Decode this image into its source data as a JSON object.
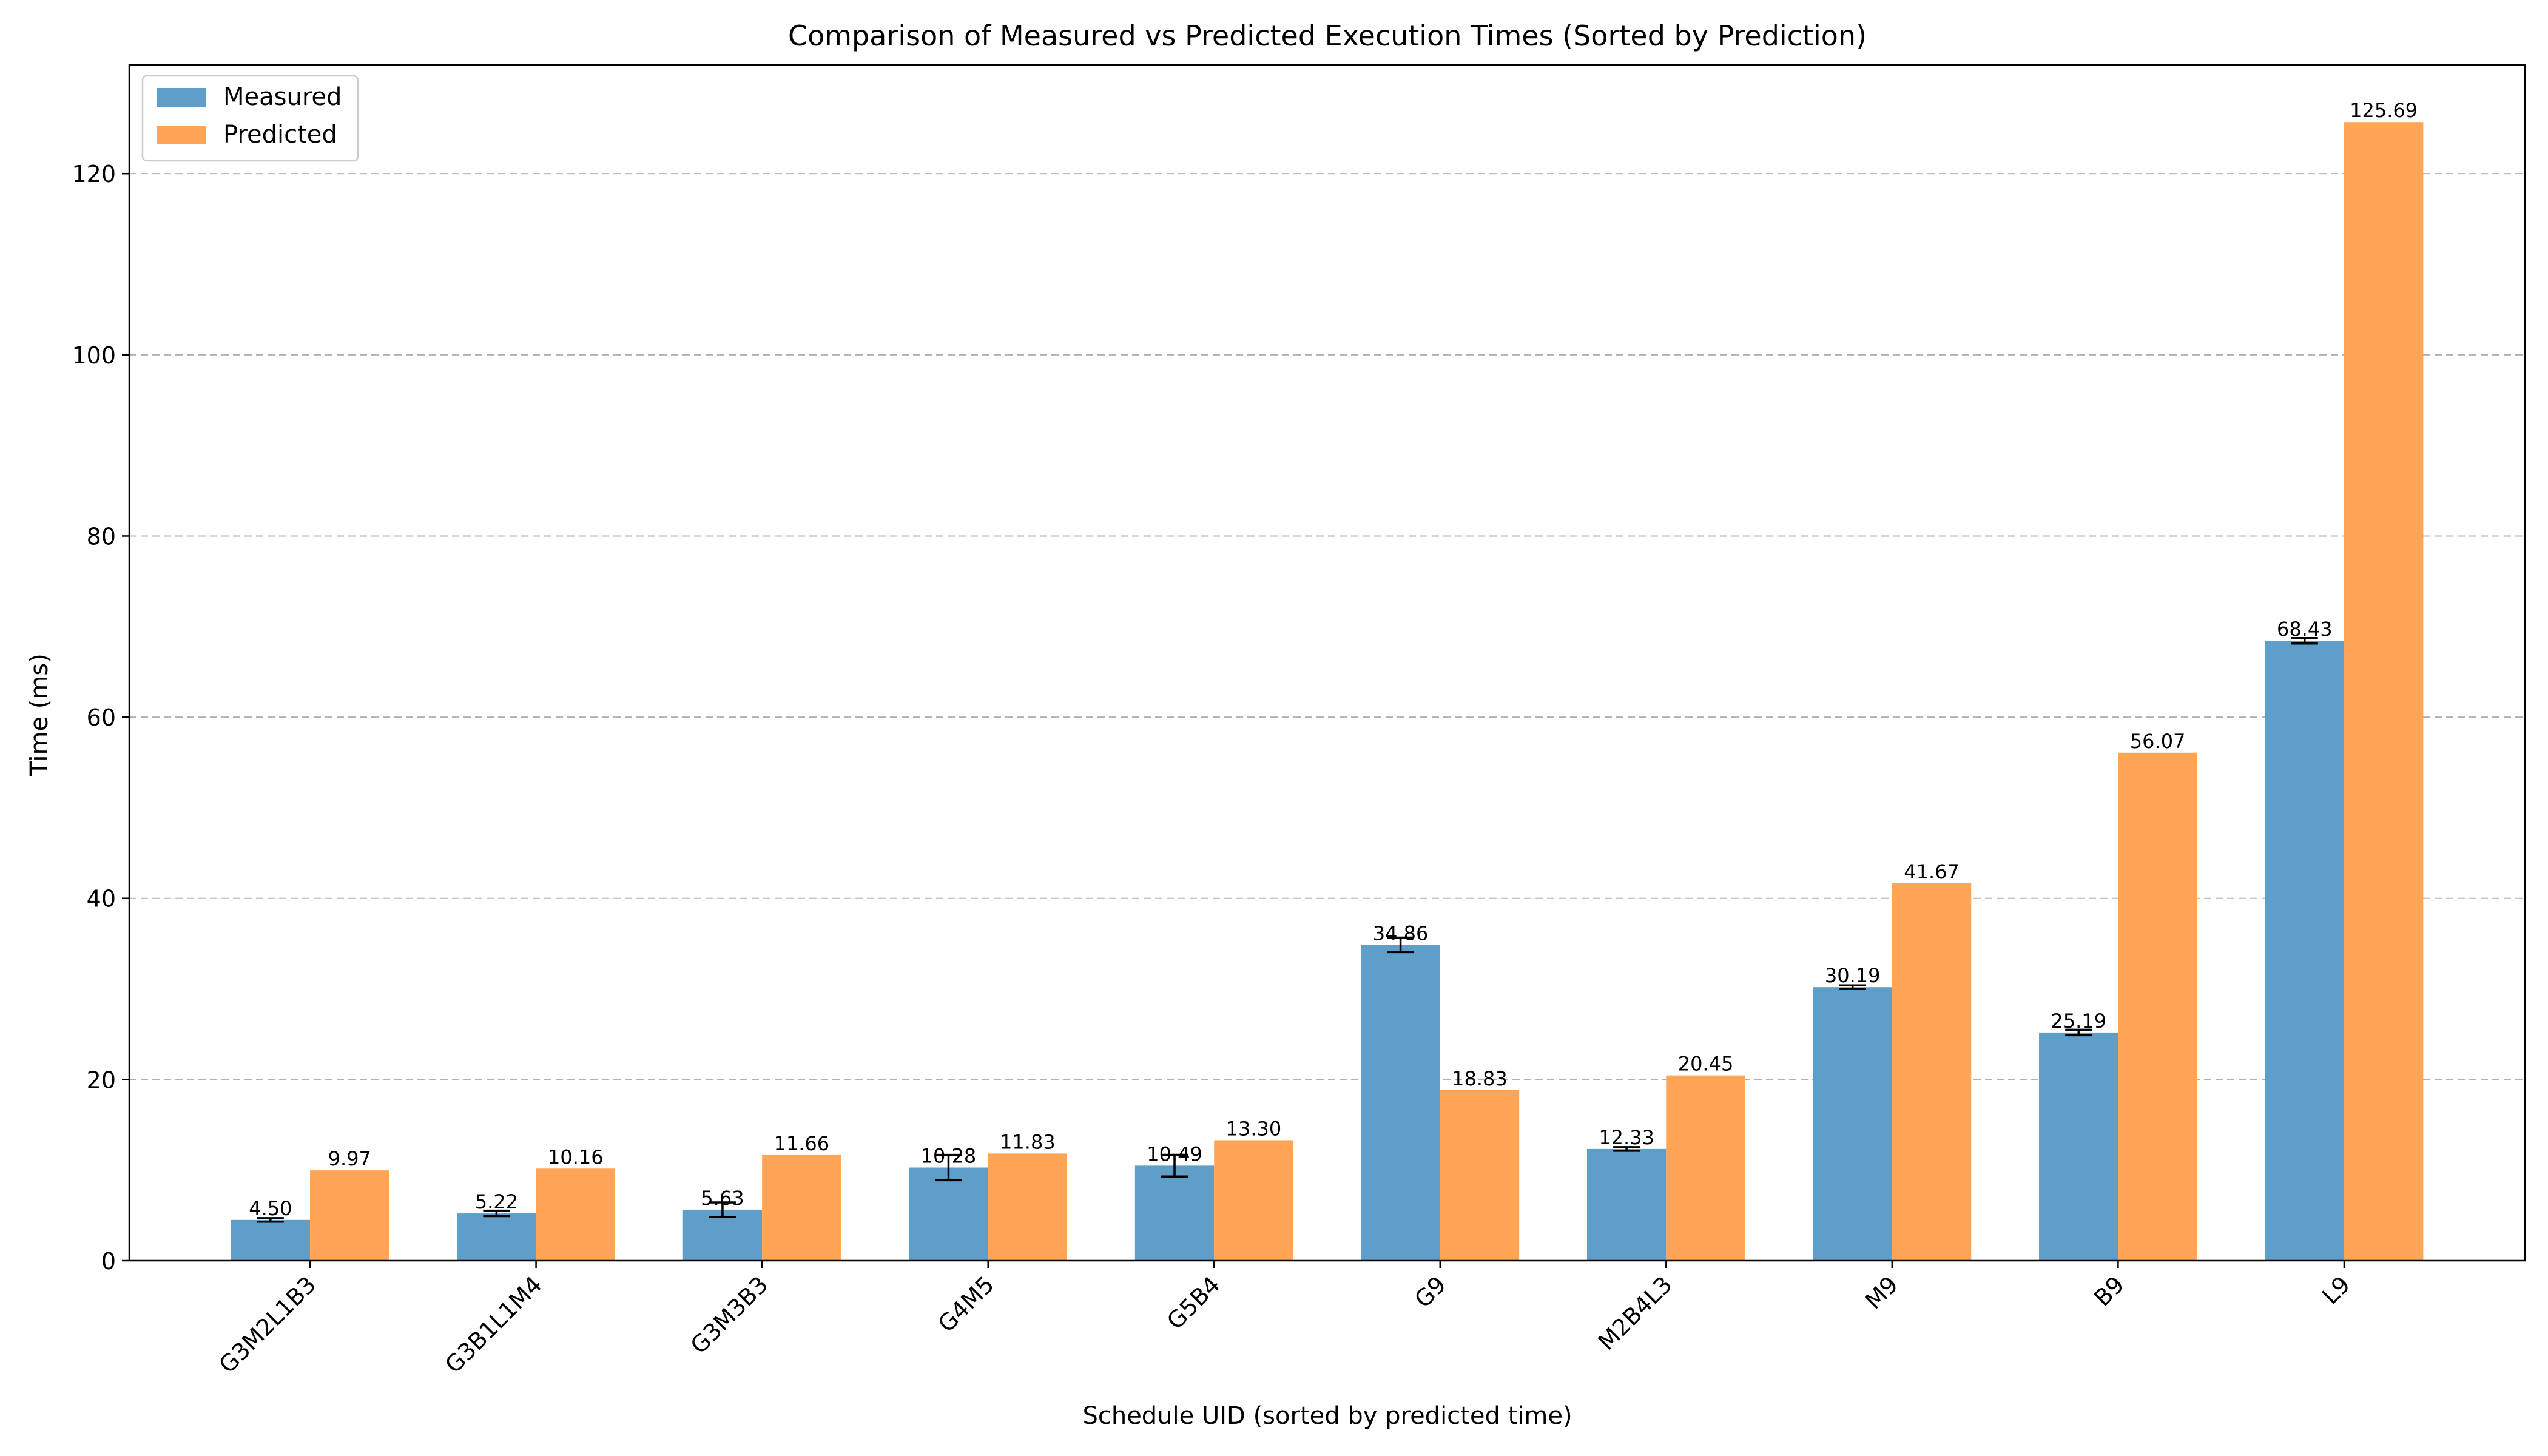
{
  "chart_data": {
    "type": "bar",
    "title": "Comparison of Measured vs Predicted Execution Times (Sorted by Prediction)",
    "xlabel": "Schedule UID (sorted by predicted time)",
    "ylabel": "Time (ms)",
    "ylim": [
      0,
      132
    ],
    "yticks": [
      0,
      20,
      40,
      60,
      80,
      100,
      120
    ],
    "grid": "horizontal dashed",
    "legend_position": "top-left",
    "categories": [
      "G3M2L1B3",
      "G3B1L1M4",
      "G3M3B3",
      "G4M5",
      "G5B4",
      "G9",
      "M2B4L3",
      "M9",
      "B9",
      "L9"
    ],
    "series": [
      {
        "name": "Measured",
        "color": "#5f9ec9",
        "values": [
          4.5,
          5.22,
          5.63,
          10.28,
          10.49,
          34.86,
          12.33,
          30.19,
          25.19,
          68.43
        ],
        "labels": [
          "4.50",
          "5.22",
          "5.63",
          "10.28",
          "10.49",
          "34.86",
          "12.33",
          "30.19",
          "25.19",
          "68.43"
        ],
        "error": [
          0.2,
          0.3,
          0.8,
          1.4,
          1.2,
          0.8,
          0.2,
          0.2,
          0.3,
          0.3
        ]
      },
      {
        "name": "Predicted",
        "color": "#ffa555",
        "values": [
          9.97,
          10.16,
          11.66,
          11.83,
          13.3,
          18.83,
          20.45,
          41.67,
          56.07,
          125.69
        ],
        "labels": [
          "9.97",
          "10.16",
          "11.66",
          "11.83",
          "13.30",
          "18.83",
          "20.45",
          "41.67",
          "56.07",
          "125.69"
        ]
      }
    ]
  }
}
